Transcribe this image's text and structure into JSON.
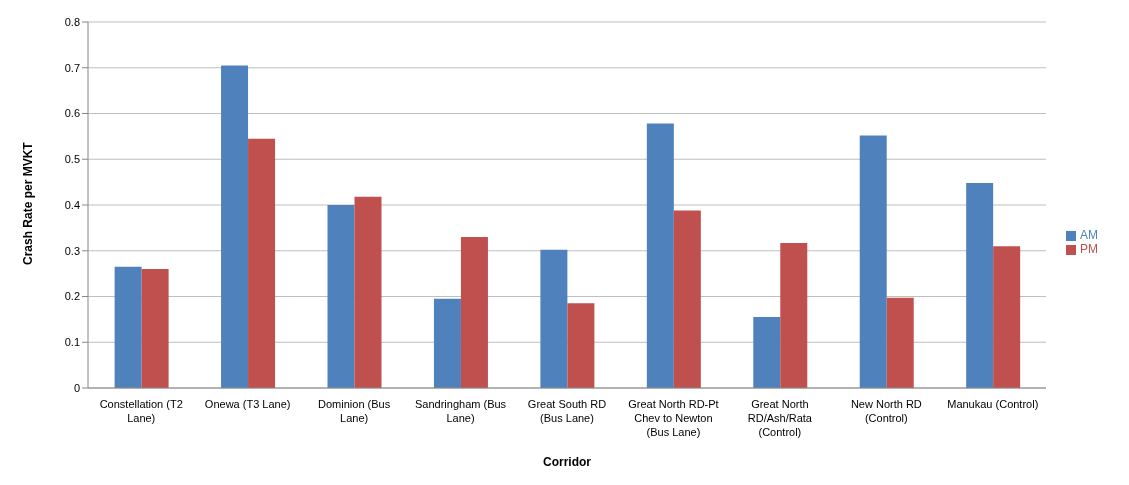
{
  "chart_data": {
    "type": "bar",
    "xlabel": "Corridor",
    "ylabel": "Crash Rate per MVKT",
    "categories": [
      "Constellation (T2 Lane)",
      "Onewa (T3 Lane)",
      "Dominion (Bus Lane)",
      "Sandringham (Bus Lane)",
      "Great South RD (Bus Lane)",
      "Great North RD-Pt Chev to Newton (Bus Lane)",
      "Great North RD/Ash/Rata (Control)",
      "New North RD (Control)",
      "Manukau (Control)"
    ],
    "series": [
      {
        "name": "AM",
        "color": "#4f81bd",
        "values": [
          0.265,
          0.705,
          0.4,
          0.195,
          0.302,
          0.578,
          0.155,
          0.552,
          0.448
        ]
      },
      {
        "name": "PM",
        "color": "#c0504d",
        "values": [
          0.26,
          0.545,
          0.418,
          0.33,
          0.185,
          0.388,
          0.317,
          0.197,
          0.31
        ]
      }
    ],
    "ylim": [
      0,
      0.8
    ],
    "yticks": [
      0,
      0.1,
      0.2,
      0.3,
      0.4,
      0.5,
      0.6,
      0.7,
      0.8
    ],
    "grid": "y",
    "legend": "right"
  }
}
